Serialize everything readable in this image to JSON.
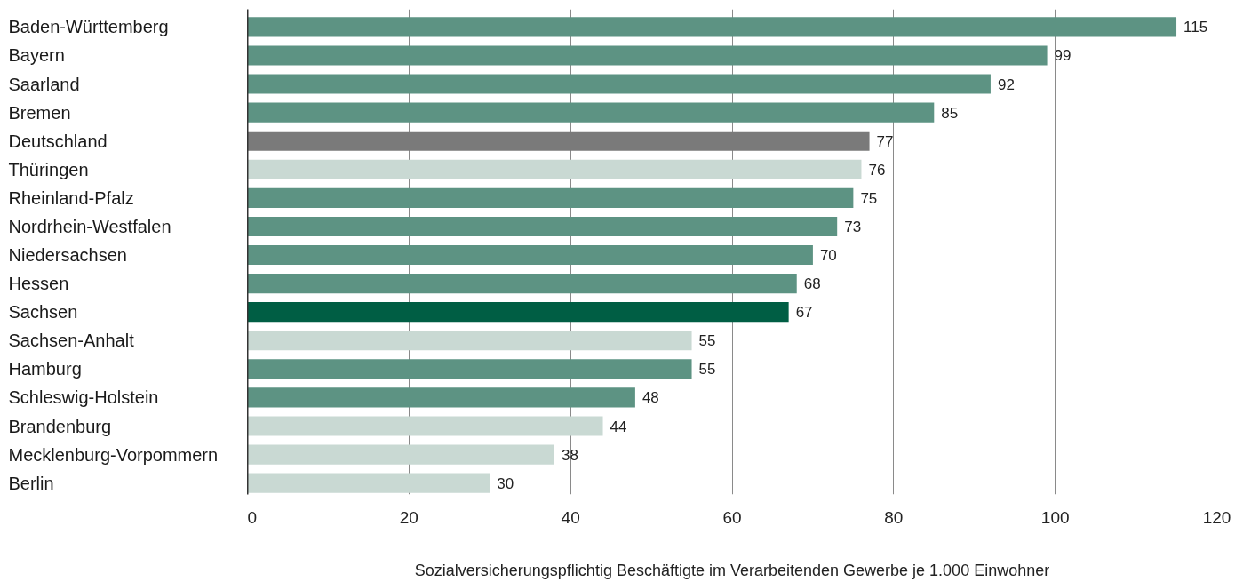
{
  "chart_data": {
    "type": "bar",
    "orientation": "horizontal",
    "categories": [
      "Baden-Württemberg",
      "Bayern",
      "Saarland",
      "Bremen",
      "Deutschland",
      "Thüringen",
      "Rheinland-Pfalz",
      "Nordrhein-Westfalen",
      "Niedersachsen",
      "Hessen",
      "Sachsen",
      "Sachsen-Anhalt",
      "Hamburg",
      "Schleswig-Holstein",
      "Brandenburg",
      "Mecklenburg-Vorpommern",
      "Berlin"
    ],
    "values": [
      115,
      99,
      92,
      85,
      77,
      76,
      75,
      73,
      70,
      68,
      67,
      55,
      55,
      48,
      44,
      38,
      30
    ],
    "colors": [
      "#5d9383",
      "#5d9383",
      "#5d9383",
      "#5d9383",
      "#7a7a7a",
      "#c9d9d3",
      "#5d9383",
      "#5d9383",
      "#5d9383",
      "#5d9383",
      "#005e44",
      "#c9d9d3",
      "#5d9383",
      "#5d9383",
      "#c9d9d3",
      "#c9d9d3",
      "#c9d9d3"
    ],
    "xlabel": "Sozialversicherungspflichtig Beschäftigte im Verarbeitenden Gewerbe je 1.000 Einwohner",
    "xlim": [
      0,
      120
    ],
    "xticks": [
      0,
      20,
      40,
      60,
      80,
      100,
      120
    ],
    "grid": "x",
    "data_labels": true
  }
}
